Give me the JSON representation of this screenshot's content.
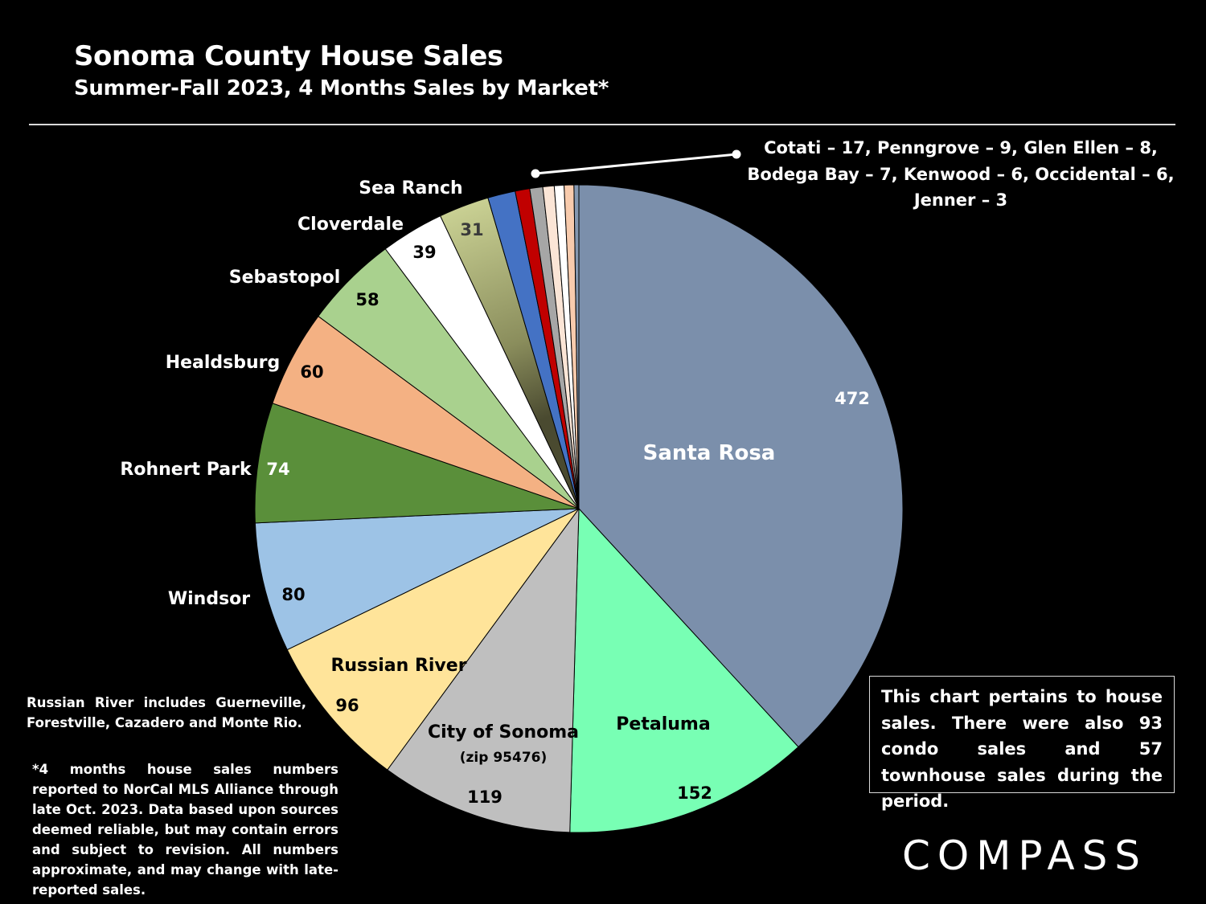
{
  "title": "Sonoma County House Sales",
  "subtitle": "Summer-Fall 2023, 4 Months Sales by Market*",
  "chart_data": {
    "type": "pie",
    "title": "Sonoma County House Sales",
    "subtitle": "Summer-Fall 2023, 4 Months Sales by Market*",
    "slices": [
      {
        "name": "Santa Rosa",
        "value": 472,
        "color": "#7b8fab",
        "label": "Santa Rosa",
        "value_label": "472"
      },
      {
        "name": "Petaluma",
        "value": 152,
        "color": "#78ffb4",
        "label": "Petaluma",
        "value_label": "152"
      },
      {
        "name": "City of Sonoma",
        "value": 119,
        "color": "#bfbfbf",
        "label": "City of Sonoma",
        "sublabel": "(zip 95476)",
        "value_label": "119"
      },
      {
        "name": "Russian River",
        "value": 96,
        "color": "#ffe49a",
        "label": "Russian River",
        "value_label": "96"
      },
      {
        "name": "Windsor",
        "value": 80,
        "color": "#9dc3e6",
        "label": "Windsor",
        "value_label": "80"
      },
      {
        "name": "Rohnert Park",
        "value": 74,
        "color": "#5a8f3a",
        "label": "Rohnert Park",
        "value_label": "74"
      },
      {
        "name": "Healdsburg",
        "value": 60,
        "color": "#f4b183",
        "label": "Healdsburg",
        "value_label": "60"
      },
      {
        "name": "Sebastopol",
        "value": 58,
        "color": "#a9d18e",
        "label": "Sebastopol",
        "value_label": "58"
      },
      {
        "name": "Cloverdale",
        "value": 39,
        "color": "#ffffff",
        "label": "Cloverdale",
        "value_label": "39"
      },
      {
        "name": "Sea Ranch",
        "value": 31,
        "color": "#b5bd84",
        "label": "Sea Ranch",
        "value_label": "31"
      },
      {
        "name": "Cotati",
        "value": 17,
        "color": "#4472c4"
      },
      {
        "name": "Penngrove",
        "value": 9,
        "color": "#c00000"
      },
      {
        "name": "Glen Ellen",
        "value": 8,
        "color": "#a6a6a6"
      },
      {
        "name": "Bodega Bay",
        "value": 7,
        "color": "#fbe5d6"
      },
      {
        "name": "Kenwood",
        "value": 6,
        "color": "#ffffff"
      },
      {
        "name": "Occidental",
        "value": 6,
        "color": "#f8cbad"
      },
      {
        "name": "Jenner",
        "value": 3,
        "color": "#8497b0"
      }
    ],
    "small_markets_label": [
      "Cotati – 17, Penngrove – 9, Glen Ellen – 8,",
      "Bodega Bay – 7, Kenwood – 6, Occidental – 6,",
      "Jenner – 3"
    ]
  },
  "notes": {
    "russian_river": "Russian River includes Guerneville, Forestville, Cazadero and Monte Rio.",
    "source": "*4 months house sales numbers reported to NorCal MLS Alliance through late Oct. 2023. Data based upon sources deemed reliable, but may contain errors and subject to revision. All numbers approximate, and may change with late-reported sales."
  },
  "info_box": "This chart pertains to house sales. There were also 93 condo sales and 57 townhouse sales during the period.",
  "logo": "COMPASS"
}
